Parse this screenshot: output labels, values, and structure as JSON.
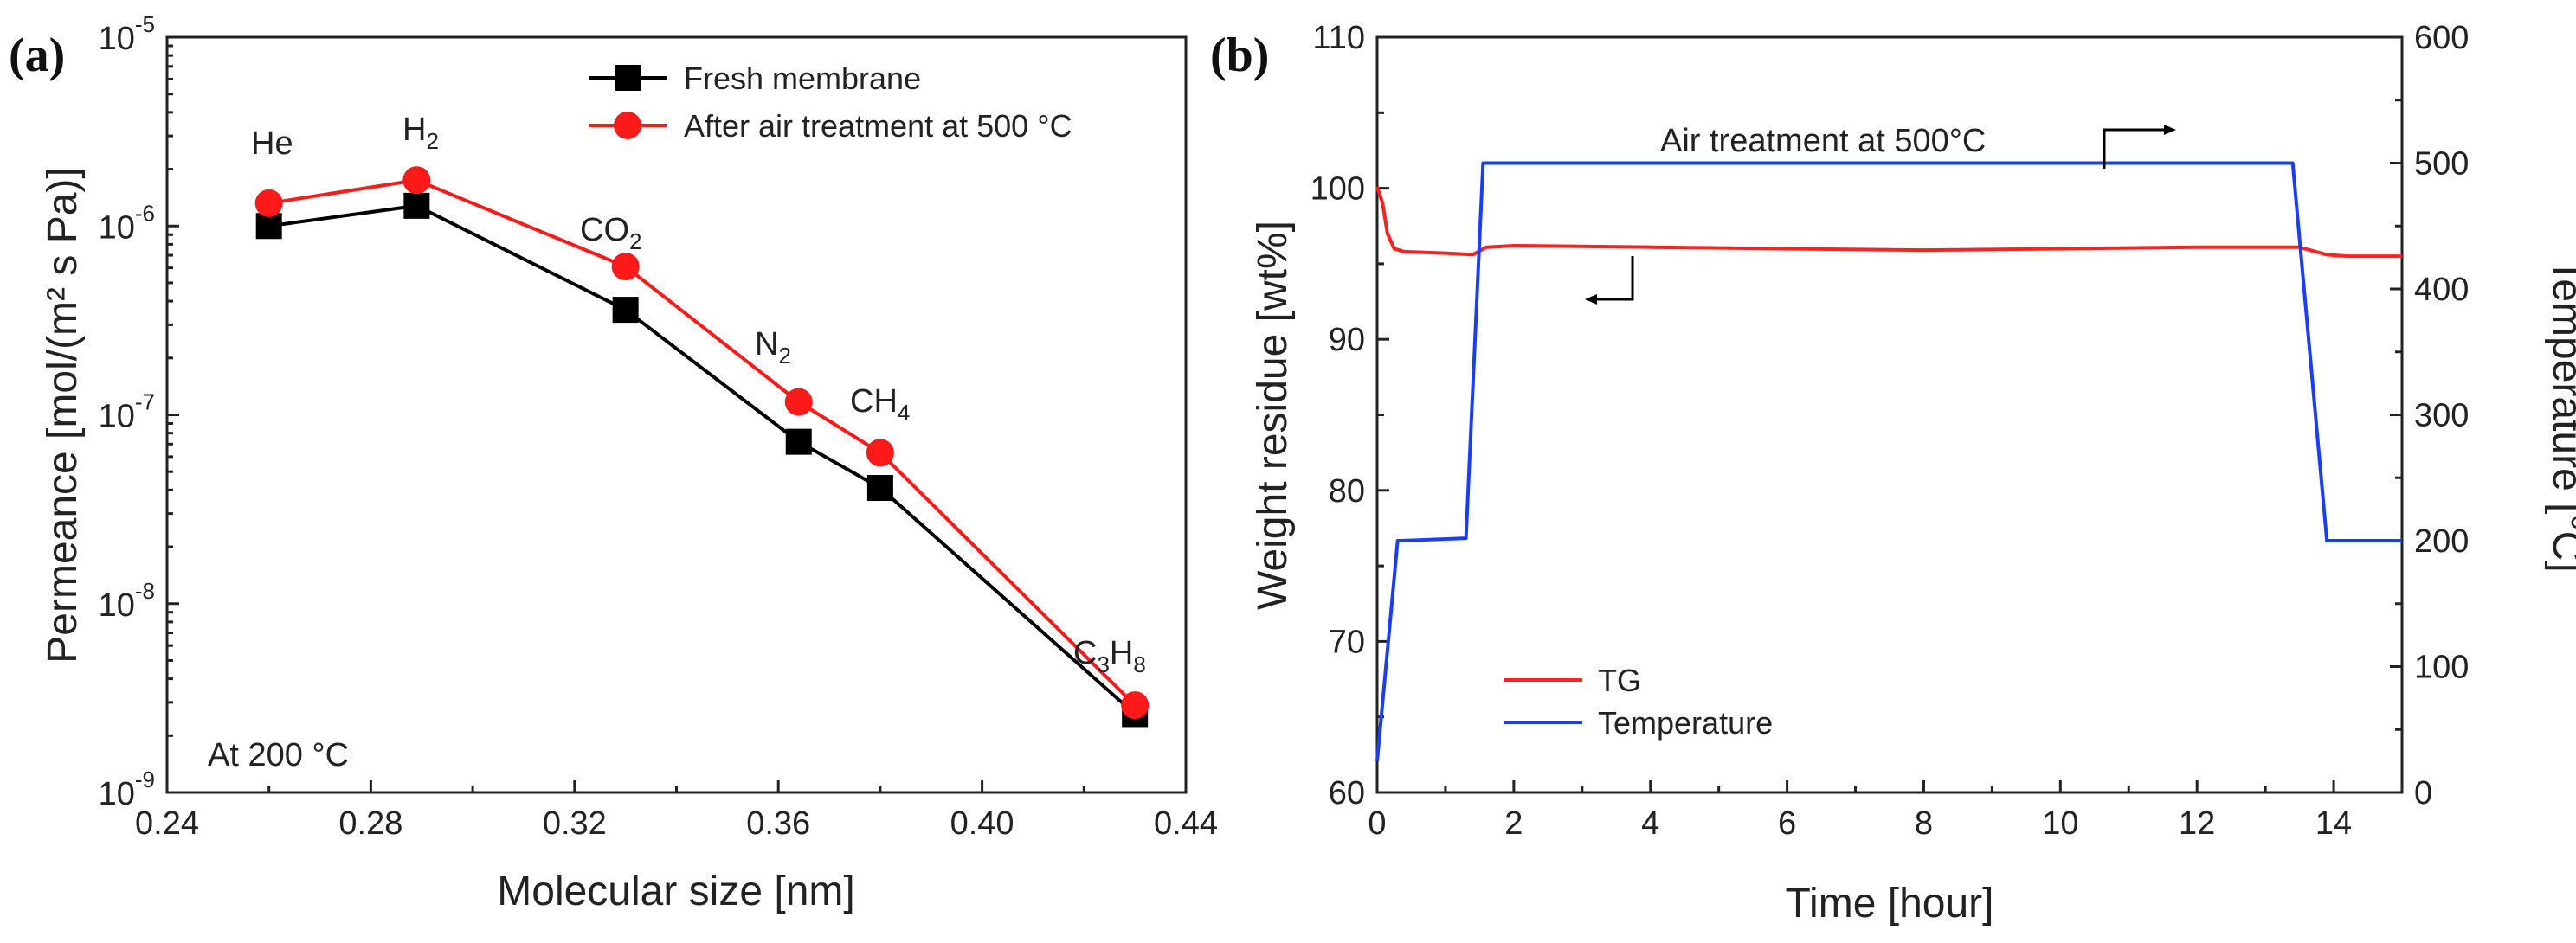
{
  "chart_data": [
    {
      "panel": "(a)",
      "type": "line",
      "xlabel": "Molecular size [nm]",
      "ylabel": "Permeance [mol/(m² s Pa)]",
      "xlim": [
        0.24,
        0.44
      ],
      "ylim": [
        1e-09,
        1e-05
      ],
      "yscale": "log",
      "xticks": [
        0.24,
        0.28,
        0.32,
        0.36,
        0.4,
        0.44
      ],
      "xtick_labels": [
        "0.24",
        "0.28",
        "0.32",
        "0.36",
        "0.40",
        "0.44"
      ],
      "yticks": [
        {
          "value": 1e-09,
          "base": "10",
          "exp": "-9"
        },
        {
          "value": 1e-08,
          "base": "10",
          "exp": "-8"
        },
        {
          "value": 1e-07,
          "base": "10",
          "exp": "-7"
        },
        {
          "value": 1e-06,
          "base": "10",
          "exp": "-6"
        },
        {
          "value": 1e-05,
          "base": "10",
          "exp": "-5"
        }
      ],
      "x": [
        0.26,
        0.289,
        0.33,
        0.364,
        0.38,
        0.43
      ],
      "series": [
        {
          "name": "Fresh membrane",
          "color": "#000000",
          "marker": "square",
          "values": [
            1e-06,
            1.28e-06,
            3.6e-07,
            7.2e-08,
            4.1e-08,
            2.6e-09
          ]
        },
        {
          "name": "After air treatment at 500 °C",
          "color": "#ff1a1a",
          "marker": "circle",
          "values": [
            1.32e-06,
            1.75e-06,
            6.1e-07,
            1.17e-07,
            6.3e-08,
            2.9e-09
          ]
        }
      ],
      "gas_labels": [
        {
          "main": "He",
          "sub": "",
          "tail": "",
          "sub2": ""
        },
        {
          "main": "H",
          "sub": "2",
          "tail": "",
          "sub2": ""
        },
        {
          "main": "CO",
          "sub": "2",
          "tail": "",
          "sub2": ""
        },
        {
          "main": "N",
          "sub": "2",
          "tail": "",
          "sub2": ""
        },
        {
          "main": "CH",
          "sub": "4",
          "tail": "",
          "sub2": ""
        },
        {
          "main": "C",
          "sub": "3",
          "tail": "H",
          "sub2": "8"
        }
      ],
      "annotation": "At 200 °C",
      "legend_position": "top-right"
    },
    {
      "panel": "(b)",
      "type": "line",
      "xlabel": "Time [hour]",
      "ylabel": "Weight residue [wt%]",
      "y2label": "Temperature [°C]",
      "xlim": [
        0,
        15
      ],
      "ylim": [
        60,
        110
      ],
      "y2lim": [
        0,
        600
      ],
      "xticks": [
        0,
        2,
        4,
        6,
        8,
        10,
        12,
        14
      ],
      "yticks": [
        60,
        70,
        80,
        90,
        100,
        110
      ],
      "y2ticks": [
        0,
        100,
        200,
        300,
        400,
        500,
        600
      ],
      "series": [
        {
          "name": "TG",
          "color": "#ff2020",
          "axis": "left",
          "x": [
            0,
            0.08,
            0.15,
            0.25,
            0.4,
            1.0,
            1.4,
            1.6,
            2.0,
            4.0,
            6.0,
            8.0,
            10.0,
            12.0,
            13.5,
            13.9,
            14.2,
            15.0
          ],
          "values": [
            100.1,
            99.0,
            97.0,
            96.0,
            95.8,
            95.7,
            95.6,
            96.1,
            96.2,
            96.1,
            96.0,
            95.9,
            96.0,
            96.1,
            96.1,
            95.6,
            95.5,
            95.5
          ]
        },
        {
          "name": "Temperature",
          "color": "#1a3cff",
          "axis": "right",
          "x": [
            0,
            0.3,
            0.35,
            1.3,
            1.55,
            13.4,
            13.9,
            15.0
          ],
          "values": [
            25,
            200,
            200,
            202,
            500,
            500,
            200,
            200
          ]
        }
      ],
      "annotation": "Air treatment at 500°C",
      "legend_position": "bottom-left"
    }
  ]
}
